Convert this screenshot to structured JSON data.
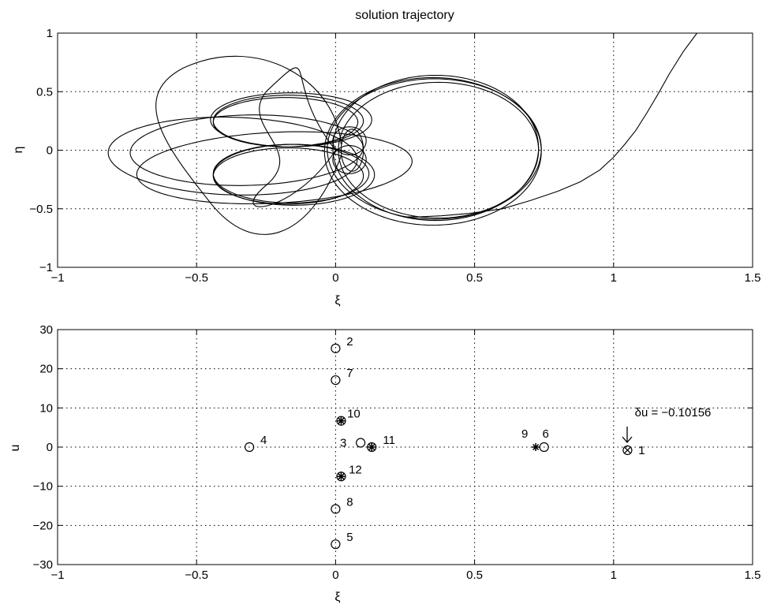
{
  "chart_data": [
    {
      "type": "line",
      "title": "solution trajectory",
      "xlabel": "ξ",
      "ylabel": "η",
      "xlim": [
        -1,
        1.5
      ],
      "ylim": [
        -1,
        1
      ],
      "xticks": [
        "−1",
        "−0.5",
        "0",
        "0.5",
        "1",
        "1.5"
      ],
      "yticks": [
        "−1",
        "−0.5",
        "0",
        "0.5",
        "1"
      ],
      "grid": true,
      "series": [
        {
          "x": [
            1.3,
            1.25,
            1.2,
            1.16,
            1.12,
            1.08,
            1.04,
            1.0,
            0.95,
            0.88,
            0.8,
            0.7,
            0.6,
            0.48,
            0.38,
            0.3,
            0.25
          ],
          "y": [
            1.0,
            0.84,
            0.65,
            0.48,
            0.32,
            0.17,
            0.05,
            -0.06,
            -0.17,
            -0.27,
            -0.35,
            -0.43,
            -0.5,
            -0.54,
            -0.56,
            -0.57,
            -0.57
          ]
        }
      ]
    },
    {
      "type": "scatter",
      "xlabel": "ξ",
      "ylabel": "u",
      "xlim": [
        -1,
        1.5
      ],
      "ylim": [
        -30,
        30
      ],
      "xticks": [
        "−1",
        "−0.5",
        "0",
        "0.5",
        "1",
        "1.5"
      ],
      "yticks": [
        "−30",
        "−20",
        "−10",
        "0",
        "10",
        "20",
        "30"
      ],
      "grid": true,
      "annotation": "δu = −0.10156",
      "points": [
        {
          "label": "1",
          "x": 1.05,
          "y": -0.8,
          "marker": "circle-x"
        },
        {
          "label": "2",
          "x": 0.0,
          "y": 25.2,
          "marker": "circle"
        },
        {
          "label": "3",
          "x": 0.09,
          "y": 1.1,
          "marker": "circle"
        },
        {
          "label": "4",
          "x": -0.31,
          "y": 0.0,
          "marker": "circle"
        },
        {
          "label": "5",
          "x": 0.0,
          "y": -24.8,
          "marker": "circle"
        },
        {
          "label": "6",
          "x": 0.75,
          "y": 0.0,
          "marker": "circle"
        },
        {
          "label": "7",
          "x": 0.0,
          "y": 17.1,
          "marker": "circle"
        },
        {
          "label": "8",
          "x": 0.0,
          "y": -15.8,
          "marker": "circle"
        },
        {
          "label": "9",
          "x": 0.72,
          "y": 0.0,
          "marker": "asterisk"
        },
        {
          "label": "10",
          "x": 0.02,
          "y": 6.7,
          "marker": "circle-asterisk"
        },
        {
          "label": "11",
          "x": 0.13,
          "y": 0.0,
          "marker": "circle-asterisk"
        },
        {
          "label": "12",
          "x": 0.02,
          "y": -7.5,
          "marker": "circle-asterisk"
        }
      ]
    }
  ]
}
